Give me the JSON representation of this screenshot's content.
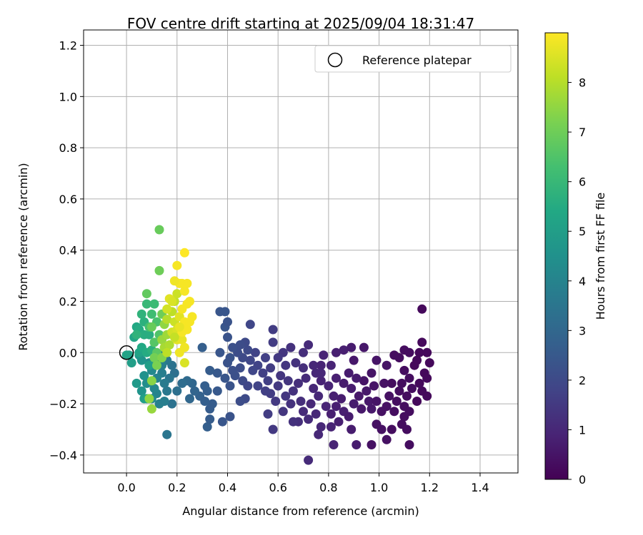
{
  "chart_data": {
    "type": "scatter",
    "title": "FOV centre drift starting at 2025/09/04 18:31:47",
    "xlabel": "Angular distance from reference (arcmin)",
    "ylabel": "Rotation from reference (arcmin)",
    "xlim": [
      -0.17,
      1.55
    ],
    "ylim": [
      -0.47,
      1.26
    ],
    "xticks": [
      0.0,
      0.2,
      0.4,
      0.6,
      0.8,
      1.0,
      1.2,
      1.4
    ],
    "yticks": [
      -0.4,
      -0.2,
      0.0,
      0.2,
      0.4,
      0.6,
      0.8,
      1.0,
      1.2
    ],
    "xtick_labels": [
      "0.0",
      "0.2",
      "0.4",
      "0.6",
      "0.8",
      "1.0",
      "1.2",
      "1.4"
    ],
    "ytick_labels": [
      "−0.4",
      "−0.2",
      "0.0",
      "0.2",
      "0.4",
      "0.6",
      "0.8",
      "1.0",
      "1.2"
    ],
    "grid": true,
    "legend": {
      "placement": "top-right",
      "entries": [
        "Reference platepar"
      ]
    },
    "reference_point": {
      "x": 0.0,
      "y": 0.0
    },
    "colorbar": {
      "label": "Hours from first FF file",
      "range": [
        0,
        9
      ],
      "ticks": [
        0,
        1,
        2,
        3,
        4,
        5,
        6,
        7,
        8
      ],
      "colormap": "viridis"
    },
    "points": [
      [
        1.17,
        0.17,
        0.2
      ],
      [
        1.17,
        0.04,
        0.2
      ],
      [
        1.16,
        0.0,
        0.2
      ],
      [
        1.19,
        0.0,
        0.2
      ],
      [
        1.2,
        -0.04,
        0.2
      ],
      [
        1.15,
        -0.03,
        0.2
      ],
      [
        1.12,
        0.0,
        0.3
      ],
      [
        1.1,
        0.01,
        0.3
      ],
      [
        1.08,
        -0.02,
        0.3
      ],
      [
        1.06,
        -0.01,
        0.3
      ],
      [
        1.1,
        -0.07,
        0.3
      ],
      [
        1.14,
        -0.05,
        0.2
      ],
      [
        1.18,
        -0.08,
        0.2
      ],
      [
        1.19,
        -0.1,
        0.2
      ],
      [
        1.16,
        -0.12,
        0.2
      ],
      [
        1.12,
        -0.1,
        0.3
      ],
      [
        1.09,
        -0.12,
        0.3
      ],
      [
        1.13,
        -0.14,
        0.3
      ],
      [
        1.17,
        -0.15,
        0.2
      ],
      [
        1.19,
        -0.17,
        0.2
      ],
      [
        1.15,
        -0.19,
        0.2
      ],
      [
        1.11,
        -0.17,
        0.3
      ],
      [
        1.08,
        -0.15,
        0.3
      ],
      [
        1.05,
        -0.12,
        0.3
      ],
      [
        1.02,
        -0.12,
        0.4
      ],
      [
        1.04,
        -0.17,
        0.4
      ],
      [
        1.07,
        -0.19,
        0.3
      ],
      [
        1.1,
        -0.21,
        0.3
      ],
      [
        1.12,
        -0.23,
        0.3
      ],
      [
        1.1,
        -0.25,
        0.3
      ],
      [
        1.06,
        -0.23,
        0.3
      ],
      [
        1.03,
        -0.21,
        0.4
      ],
      [
        1.01,
        -0.23,
        0.4
      ],
      [
        0.99,
        -0.28,
        0.4
      ],
      [
        1.01,
        -0.3,
        0.4
      ],
      [
        1.05,
        -0.3,
        0.3
      ],
      [
        1.09,
        -0.28,
        0.3
      ],
      [
        1.11,
        -0.3,
        0.3
      ],
      [
        1.12,
        -0.36,
        0.3
      ],
      [
        1.03,
        -0.34,
        0.4
      ],
      [
        0.97,
        -0.36,
        0.4
      ],
      [
        0.99,
        -0.03,
        0.5
      ],
      [
        1.03,
        -0.05,
        0.5
      ],
      [
        0.97,
        -0.08,
        0.5
      ],
      [
        0.94,
        -0.11,
        0.5
      ],
      [
        0.98,
        -0.13,
        0.5
      ],
      [
        0.95,
        -0.15,
        0.6
      ],
      [
        0.92,
        -0.17,
        0.6
      ],
      [
        0.96,
        -0.19,
        0.6
      ],
      [
        0.93,
        -0.22,
        0.6
      ],
      [
        0.97,
        -0.22,
        0.6
      ],
      [
        0.99,
        -0.19,
        0.5
      ],
      [
        0.9,
        -0.03,
        0.6
      ],
      [
        0.88,
        -0.08,
        0.7
      ],
      [
        0.86,
        -0.12,
        0.7
      ],
      [
        0.89,
        -0.14,
        0.7
      ],
      [
        0.85,
        -0.18,
        0.7
      ],
      [
        0.83,
        -0.21,
        0.8
      ],
      [
        0.86,
        -0.23,
        0.8
      ],
      [
        0.88,
        -0.25,
        0.7
      ],
      [
        0.84,
        -0.27,
        0.8
      ],
      [
        0.81,
        -0.24,
        0.8
      ],
      [
        0.79,
        -0.21,
        0.9
      ],
      [
        0.82,
        -0.17,
        0.8
      ],
      [
        0.8,
        -0.13,
        0.9
      ],
      [
        0.83,
        -0.1,
        0.8
      ],
      [
        0.81,
        -0.05,
        0.9
      ],
      [
        0.83,
        0.0,
        0.8
      ],
      [
        0.86,
        0.01,
        0.8
      ],
      [
        0.89,
        0.02,
        0.7
      ],
      [
        0.94,
        0.02,
        0.6
      ],
      [
        0.78,
        -0.01,
        0.9
      ],
      [
        0.77,
        -0.05,
        0.9
      ],
      [
        0.75,
        -0.08,
        1.0
      ],
      [
        0.77,
        -0.11,
        0.9
      ],
      [
        0.74,
        -0.14,
        1.0
      ],
      [
        0.76,
        -0.17,
        1.0
      ],
      [
        0.73,
        -0.2,
        1.0
      ],
      [
        0.75,
        -0.24,
        1.0
      ],
      [
        0.72,
        -0.26,
        1.1
      ],
      [
        0.77,
        -0.29,
        1.0
      ],
      [
        0.76,
        -0.32,
        1.0
      ],
      [
        0.81,
        -0.29,
        0.9
      ],
      [
        0.82,
        -0.36,
        0.9
      ],
      [
        0.89,
        -0.3,
        0.7
      ],
      [
        0.91,
        -0.36,
        0.7
      ],
      [
        0.9,
        -0.2,
        0.7
      ],
      [
        0.91,
        -0.1,
        0.7
      ],
      [
        0.72,
        -0.42,
        1.1
      ],
      [
        0.68,
        -0.27,
        1.2
      ],
      [
        0.7,
        -0.23,
        1.1
      ],
      [
        0.69,
        -0.19,
        1.2
      ],
      [
        0.66,
        -0.27,
        1.3
      ],
      [
        0.65,
        -0.2,
        1.3
      ],
      [
        0.63,
        -0.17,
        1.4
      ],
      [
        0.66,
        -0.15,
        1.3
      ],
      [
        0.68,
        -0.12,
        1.2
      ],
      [
        0.71,
        -0.1,
        1.1
      ],
      [
        0.7,
        -0.06,
        1.2
      ],
      [
        0.67,
        -0.04,
        1.3
      ],
      [
        0.7,
        0.0,
        1.2
      ],
      [
        0.72,
        0.03,
        1.1
      ],
      [
        0.74,
        -0.05,
        1.0
      ],
      [
        0.77,
        -0.08,
        1.0
      ],
      [
        0.65,
        0.02,
        1.3
      ],
      [
        0.62,
        0.0,
        1.4
      ],
      [
        0.6,
        -0.02,
        1.5
      ],
      [
        0.63,
        -0.05,
        1.4
      ],
      [
        0.61,
        -0.09,
        1.4
      ],
      [
        0.64,
        -0.11,
        1.4
      ],
      [
        0.6,
        -0.13,
        1.5
      ],
      [
        0.57,
        -0.16,
        1.6
      ],
      [
        0.59,
        -0.19,
        1.5
      ],
      [
        0.62,
        -0.23,
        1.4
      ],
      [
        0.58,
        -0.3,
        1.5
      ],
      [
        0.56,
        -0.24,
        1.6
      ],
      [
        0.58,
        0.04,
        1.6
      ],
      [
        0.58,
        0.09,
        1.6
      ],
      [
        0.55,
        -0.02,
        1.7
      ],
      [
        0.57,
        -0.06,
        1.6
      ],
      [
        0.54,
        -0.08,
        1.7
      ],
      [
        0.56,
        -0.11,
        1.7
      ],
      [
        0.52,
        -0.13,
        1.8
      ],
      [
        0.55,
        -0.15,
        1.7
      ],
      [
        0.52,
        -0.05,
        1.8
      ],
      [
        0.5,
        -0.07,
        1.9
      ],
      [
        0.49,
        -0.03,
        1.9
      ],
      [
        0.51,
        0.0,
        1.8
      ],
      [
        0.48,
        0.01,
        2.0
      ],
      [
        0.46,
        -0.02,
        2.0
      ],
      [
        0.47,
        0.04,
        2.0
      ],
      [
        0.49,
        0.11,
        1.9
      ],
      [
        0.45,
        0.03,
        2.1
      ],
      [
        0.44,
        0.0,
        2.1
      ],
      [
        0.45,
        -0.06,
        2.1
      ],
      [
        0.43,
        -0.09,
        2.2
      ],
      [
        0.46,
        -0.11,
        2.0
      ],
      [
        0.48,
        -0.13,
        1.9
      ],
      [
        0.47,
        -0.18,
        2.0
      ],
      [
        0.45,
        -0.19,
        2.1
      ],
      [
        0.42,
        -0.07,
        2.2
      ],
      [
        0.4,
        -0.04,
        2.3
      ],
      [
        0.41,
        -0.02,
        2.3
      ],
      [
        0.42,
        0.02,
        2.2
      ],
      [
        0.4,
        0.06,
        2.3
      ],
      [
        0.39,
        0.1,
        2.4
      ],
      [
        0.4,
        0.12,
        2.3
      ],
      [
        0.37,
        0.16,
        2.4
      ],
      [
        0.39,
        0.16,
        2.4
      ],
      [
        0.37,
        0.0,
        2.4
      ],
      [
        0.36,
        -0.08,
        2.5
      ],
      [
        0.39,
        -0.1,
        2.4
      ],
      [
        0.41,
        -0.13,
        2.3
      ],
      [
        0.41,
        -0.25,
        2.3
      ],
      [
        0.38,
        -0.27,
        2.4
      ],
      [
        0.36,
        -0.15,
        2.5
      ],
      [
        0.34,
        -0.2,
        2.6
      ],
      [
        0.33,
        -0.22,
        2.6
      ],
      [
        0.32,
        -0.15,
        2.7
      ],
      [
        0.33,
        -0.07,
        2.6
      ],
      [
        0.31,
        -0.13,
        2.7
      ],
      [
        0.3,
        0.02,
        2.7
      ],
      [
        0.29,
        -0.17,
        2.8
      ],
      [
        0.31,
        -0.19,
        2.7
      ],
      [
        0.32,
        -0.29,
        2.7
      ],
      [
        0.33,
        -0.26,
        2.6
      ],
      [
        0.27,
        -0.15,
        2.9
      ],
      [
        0.25,
        -0.18,
        3.0
      ],
      [
        0.26,
        -0.12,
        3.0
      ],
      [
        0.24,
        -0.11,
        3.1
      ],
      [
        0.22,
        -0.12,
        3.2
      ],
      [
        0.2,
        -0.15,
        3.3
      ],
      [
        0.19,
        -0.08,
        3.3
      ],
      [
        0.18,
        -0.2,
        3.4
      ],
      [
        0.16,
        -0.32,
        3.5
      ],
      [
        0.18,
        -0.05,
        3.4
      ],
      [
        0.16,
        -0.03,
        3.6
      ],
      [
        0.17,
        -0.1,
        3.5
      ],
      [
        0.15,
        -0.12,
        3.7
      ],
      [
        0.16,
        -0.15,
        3.6
      ],
      [
        0.14,
        -0.08,
        3.8
      ],
      [
        0.13,
        -0.2,
        3.9
      ],
      [
        0.15,
        -0.19,
        3.8
      ],
      [
        0.14,
        -0.05,
        3.9
      ],
      [
        0.12,
        -0.16,
        4.0
      ],
      [
        0.12,
        -0.1,
        4.0
      ],
      [
        0.11,
        -0.14,
        4.1
      ],
      [
        0.1,
        -0.07,
        4.2
      ],
      [
        0.1,
        -0.18,
        4.2
      ],
      [
        0.13,
        -0.03,
        4.0
      ],
      [
        0.14,
        -0.01,
        3.9
      ],
      [
        0.09,
        -0.04,
        4.3
      ],
      [
        0.08,
        -0.12,
        4.4
      ],
      [
        0.07,
        -0.09,
        4.5
      ],
      [
        0.06,
        -0.15,
        4.6
      ],
      [
        0.06,
        -0.03,
        4.6
      ],
      [
        0.05,
        -0.01,
        4.7
      ],
      [
        0.04,
        -0.12,
        4.8
      ],
      [
        0.02,
        -0.04,
        5.0
      ],
      [
        0.01,
        -0.01,
        5.1
      ],
      [
        0.0,
        -0.01,
        5.2
      ],
      [
        0.07,
        -0.18,
        5.0
      ],
      [
        0.08,
        -0.18,
        5.1
      ],
      [
        0.09,
        -0.05,
        5.0
      ],
      [
        0.05,
        0.0,
        5.2
      ],
      [
        0.03,
        0.06,
        5.3
      ],
      [
        0.04,
        0.1,
        5.4
      ],
      [
        0.06,
        0.02,
        5.4
      ],
      [
        0.05,
        0.09,
        5.5
      ],
      [
        0.08,
        0.0,
        5.5
      ],
      [
        0.07,
        0.07,
        5.6
      ],
      [
        0.09,
        0.07,
        5.6
      ],
      [
        0.1,
        0.01,
        5.7
      ],
      [
        0.07,
        0.12,
        5.7
      ],
      [
        0.06,
        0.15,
        5.8
      ],
      [
        0.04,
        0.07,
        5.8
      ],
      [
        0.08,
        0.19,
        6.0
      ],
      [
        0.11,
        0.19,
        6.1
      ],
      [
        0.1,
        0.15,
        6.2
      ],
      [
        0.09,
        0.1,
        6.3
      ],
      [
        0.12,
        0.12,
        6.4
      ],
      [
        0.13,
        0.07,
        6.5
      ],
      [
        0.11,
        0.04,
        6.6
      ],
      [
        0.12,
        0.0,
        6.7
      ],
      [
        0.08,
        0.23,
        6.8
      ],
      [
        0.1,
        0.1,
        6.9
      ],
      [
        0.14,
        0.15,
        7.0
      ],
      [
        0.13,
        0.48,
        6.9
      ],
      [
        0.13,
        0.32,
        7.0
      ],
      [
        0.11,
        -0.02,
        7.1
      ],
      [
        0.12,
        -0.05,
        7.2
      ],
      [
        0.14,
        -0.02,
        7.3
      ],
      [
        0.1,
        -0.11,
        7.4
      ],
      [
        0.09,
        -0.18,
        7.5
      ],
      [
        0.1,
        -0.22,
        7.6
      ],
      [
        0.15,
        0.11,
        7.5
      ],
      [
        0.14,
        0.05,
        7.6
      ],
      [
        0.16,
        0.07,
        7.7
      ],
      [
        0.15,
        0.02,
        7.8
      ],
      [
        0.17,
        0.03,
        7.9
      ],
      [
        0.16,
        0.13,
        8.0
      ],
      [
        0.18,
        0.16,
        8.1
      ],
      [
        0.19,
        0.2,
        8.2
      ],
      [
        0.2,
        0.23,
        8.3
      ],
      [
        0.19,
        0.12,
        8.3
      ],
      [
        0.18,
        0.08,
        8.4
      ],
      [
        0.2,
        0.09,
        8.5
      ],
      [
        0.21,
        0.14,
        8.6
      ],
      [
        0.2,
        0.05,
        8.6
      ],
      [
        0.22,
        0.05,
        8.7
      ],
      [
        0.21,
        0.0,
        8.8
      ],
      [
        0.23,
        0.02,
        8.8
      ],
      [
        0.22,
        0.08,
        8.9
      ],
      [
        0.23,
        0.12,
        8.9
      ],
      [
        0.24,
        0.09,
        8.9
      ],
      [
        0.22,
        0.17,
        8.9
      ],
      [
        0.24,
        0.19,
        8.9
      ],
      [
        0.25,
        0.12,
        8.9
      ],
      [
        0.25,
        0.2,
        8.9
      ],
      [
        0.23,
        0.24,
        8.9
      ],
      [
        0.21,
        0.27,
        8.9
      ],
      [
        0.22,
        0.27,
        8.9
      ],
      [
        0.24,
        0.27,
        8.9
      ],
      [
        0.23,
        0.39,
        9.0
      ],
      [
        0.2,
        0.34,
        8.9
      ],
      [
        0.19,
        0.28,
        8.8
      ],
      [
        0.17,
        0.21,
        8.6
      ],
      [
        0.16,
        0.17,
        8.4
      ],
      [
        0.16,
        0.0,
        8.1
      ],
      [
        0.23,
        -0.04,
        8.5
      ],
      [
        0.26,
        0.14,
        8.9
      ],
      [
        0.18,
        0.2,
        8.5
      ],
      [
        0.21,
        0.1,
        8.7
      ],
      [
        0.19,
        0.06,
        8.2
      ]
    ]
  }
}
